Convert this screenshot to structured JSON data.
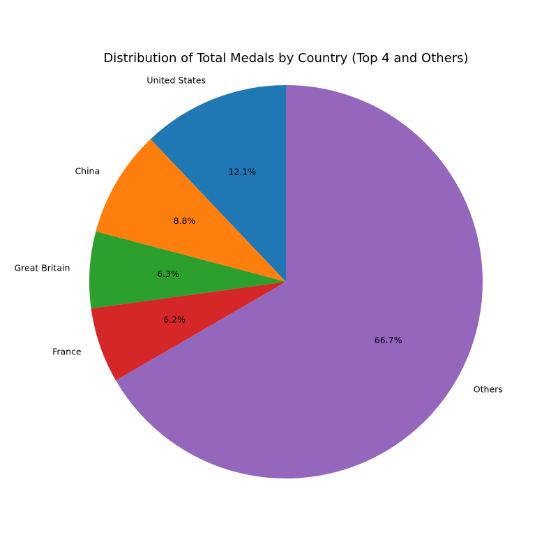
{
  "chart_data": {
    "type": "pie",
    "title": "Distribution of Total Medals by Country (Top 4 and Others)",
    "labels": [
      "United States",
      "China",
      "Great Britain",
      "France",
      "Others"
    ],
    "values": [
      12.1,
      8.8,
      6.3,
      6.2,
      66.7
    ],
    "percent_labels": [
      "12.1%",
      "8.8%",
      "6.3%",
      "6.2%",
      "66.7%"
    ],
    "colors": [
      "#1f77b4",
      "#ff7f0e",
      "#2ca02c",
      "#d62728",
      "#9467bd"
    ],
    "start_angle_deg": 90,
    "direction": "counterclockwise",
    "legend": "none"
  }
}
